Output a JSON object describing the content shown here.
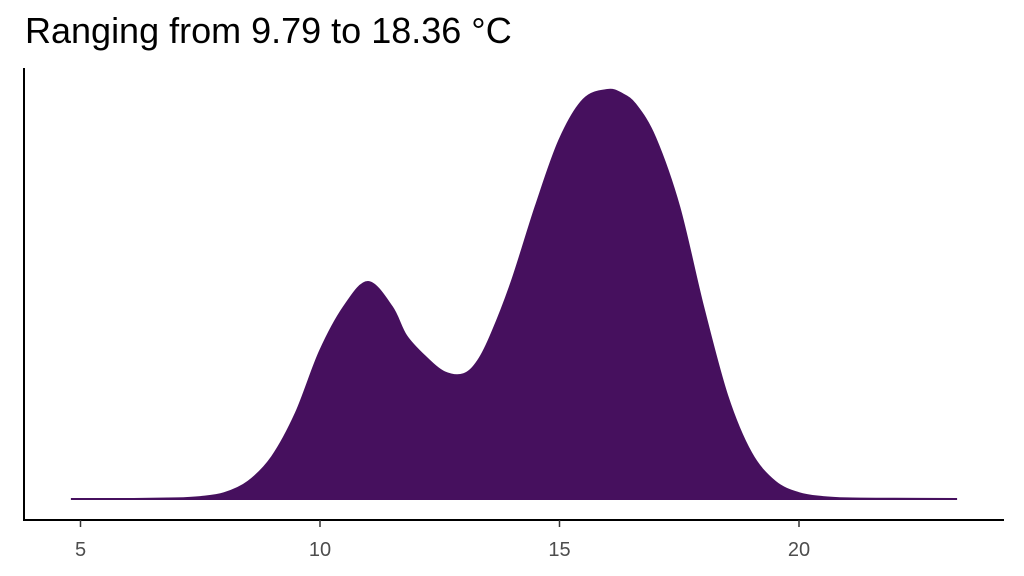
{
  "chart_data": {
    "type": "area",
    "title": "Ranging from 9.79 to 18.36 °C",
    "xlabel": "",
    "ylabel": "",
    "xlim": [
      3.8,
      25.0
    ],
    "ylim": [
      0,
      0.215
    ],
    "x_ticks": [
      5,
      10,
      15,
      20
    ],
    "x_tick_labels": [
      "5",
      "10",
      "15",
      "20"
    ],
    "grid": false,
    "fill_color": "#46105e",
    "series": [
      {
        "x": [
          4.8,
          6.0,
          7.0,
          7.5,
          8.0,
          8.5,
          9.0,
          9.5,
          10.0,
          10.5,
          11.0,
          11.5,
          11.8,
          12.2,
          12.6,
          13.0,
          13.3,
          13.6,
          14.0,
          14.5,
          15.0,
          15.5,
          16.0,
          16.3,
          16.6,
          17.0,
          17.5,
          18.0,
          18.5,
          19.0,
          19.5,
          20.0,
          20.5,
          21.0,
          22.0,
          23.3
        ],
        "y": [
          0,
          0,
          0.0003,
          0.001,
          0.003,
          0.009,
          0.022,
          0.045,
          0.077,
          0.1,
          0.113,
          0.1,
          0.085,
          0.074,
          0.066,
          0.065,
          0.072,
          0.087,
          0.113,
          0.152,
          0.187,
          0.208,
          0.213,
          0.211,
          0.205,
          0.188,
          0.152,
          0.1,
          0.054,
          0.024,
          0.009,
          0.003,
          0.001,
          0.0003,
          0.0001,
          0
        ]
      }
    ]
  }
}
